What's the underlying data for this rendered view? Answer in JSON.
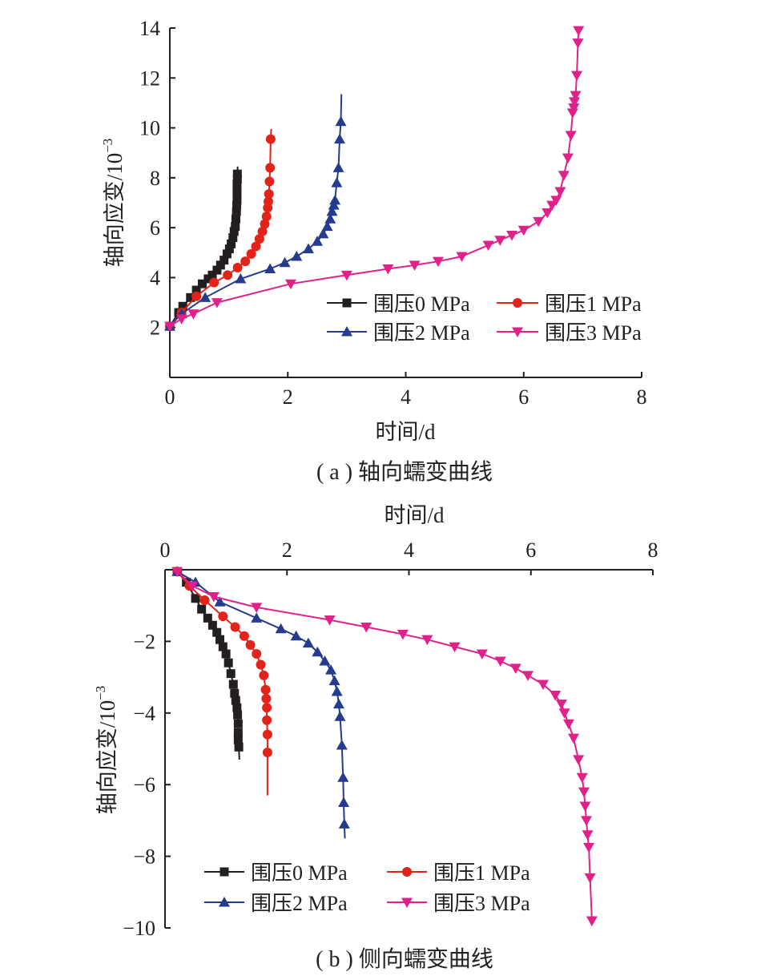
{
  "chart_data": [
    {
      "type": "line",
      "caption": "( a ) 轴向蠕变曲线",
      "xlabel": "时间/d",
      "ylabel": "轴向应变/10",
      "ylabel_exponent": "−3",
      "xlim": [
        0,
        8
      ],
      "ylim": [
        0,
        14
      ],
      "xticks": [
        "0",
        "2",
        "4",
        "6",
        "8"
      ],
      "yticks": [
        "2",
        "4",
        "6",
        "8",
        "10",
        "12",
        "14"
      ],
      "legend_position": "lower-right",
      "series": [
        {
          "name": "围压0 MPa",
          "color": "#231f20",
          "marker": "square",
          "x": [
            0.0,
            0.15,
            0.22,
            0.35,
            0.45,
            0.55,
            0.65,
            0.72,
            0.8,
            0.86,
            0.92,
            0.97,
            1.01,
            1.04,
            1.07,
            1.09,
            1.11,
            1.12,
            1.13,
            1.135,
            1.14,
            1.14,
            1.14,
            1.14,
            1.145,
            1.145,
            1.15
          ],
          "y": [
            2.05,
            2.6,
            2.85,
            3.2,
            3.5,
            3.75,
            3.95,
            4.1,
            4.3,
            4.5,
            4.7,
            4.95,
            5.15,
            5.35,
            5.6,
            5.85,
            6.05,
            6.35,
            6.65,
            6.9,
            7.1,
            7.35,
            7.55,
            7.75,
            7.95,
            8.15,
            8.45
          ]
        },
        {
          "name": "围压1 MPa",
          "color": "#e2231a",
          "marker": "circle",
          "x": [
            0.0,
            0.2,
            0.45,
            0.75,
            0.98,
            1.15,
            1.28,
            1.38,
            1.46,
            1.52,
            1.57,
            1.61,
            1.64,
            1.66,
            1.67,
            1.68,
            1.69,
            1.7,
            1.71,
            1.72
          ],
          "y": [
            2.05,
            2.6,
            3.25,
            3.8,
            4.1,
            4.4,
            4.65,
            4.95,
            5.25,
            5.55,
            5.85,
            6.15,
            6.45,
            6.8,
            7.05,
            7.35,
            7.85,
            8.4,
            9.55,
            9.95
          ]
        },
        {
          "name": "围压2 MPa",
          "color": "#243b8f",
          "marker": "triangle-up",
          "x": [
            0.0,
            0.2,
            0.6,
            1.2,
            1.7,
            1.95,
            2.15,
            2.35,
            2.5,
            2.6,
            2.67,
            2.72,
            2.75,
            2.78,
            2.8,
            2.83,
            2.86,
            2.88,
            2.9,
            2.91
          ],
          "y": [
            2.05,
            2.55,
            3.2,
            3.95,
            4.35,
            4.6,
            4.85,
            5.15,
            5.45,
            5.75,
            6.05,
            6.35,
            6.65,
            6.9,
            7.1,
            7.8,
            8.4,
            9.55,
            10.25,
            11.35
          ]
        },
        {
          "name": "围压3 MPa",
          "color": "#e0218a",
          "marker": "triangle-down",
          "x": [
            0.0,
            0.2,
            0.4,
            0.8,
            2.05,
            3.0,
            3.7,
            4.15,
            4.55,
            4.95,
            5.4,
            5.6,
            5.8,
            6.0,
            6.25,
            6.4,
            6.48,
            6.55,
            6.62,
            6.68,
            6.75,
            6.8,
            6.83,
            6.85,
            6.86,
            6.88,
            6.9,
            6.92,
            6.93
          ],
          "y": [
            2.05,
            2.35,
            2.55,
            3.0,
            3.75,
            4.1,
            4.35,
            4.5,
            4.65,
            4.85,
            5.3,
            5.5,
            5.7,
            5.9,
            6.25,
            6.6,
            6.9,
            7.1,
            7.45,
            8.1,
            8.8,
            9.7,
            10.6,
            10.8,
            11.05,
            11.3,
            12.1,
            13.4,
            13.9
          ]
        }
      ]
    },
    {
      "type": "line",
      "caption": "( b ) 侧向蠕变曲线",
      "xlabel": "时间/d",
      "ylabel": "轴向应变/10",
      "ylabel_exponent": "−3",
      "xlim": [
        0,
        8
      ],
      "ylim": [
        -10,
        0
      ],
      "xticks": [
        "0",
        "2",
        "4",
        "6",
        "8"
      ],
      "yticks": [
        "−2",
        "−4",
        "−6",
        "−8",
        "−10"
      ],
      "legend_position": "bottom-left",
      "series": [
        {
          "name": "围压0 MPa",
          "color": "#231f20",
          "marker": "square",
          "x": [
            0.2,
            0.35,
            0.5,
            0.6,
            0.7,
            0.78,
            0.85,
            0.9,
            0.95,
            1.0,
            1.04,
            1.08,
            1.12,
            1.14,
            1.16,
            1.18,
            1.19,
            1.2,
            1.2,
            1.2,
            1.21,
            1.22
          ],
          "y": [
            -0.05,
            -0.35,
            -0.8,
            -1.1,
            -1.35,
            -1.55,
            -1.75,
            -1.95,
            -2.15,
            -2.35,
            -2.6,
            -2.9,
            -3.2,
            -3.45,
            -3.65,
            -3.85,
            -4.05,
            -4.3,
            -4.55,
            -4.75,
            -4.95,
            -5.3
          ]
        },
        {
          "name": "围压1 MPa",
          "color": "#e2231a",
          "marker": "circle",
          "x": [
            0.2,
            0.4,
            0.65,
            0.95,
            1.15,
            1.3,
            1.4,
            1.5,
            1.57,
            1.62,
            1.65,
            1.66,
            1.67,
            1.67,
            1.68,
            1.68,
            1.68
          ],
          "y": [
            -0.05,
            -0.45,
            -0.85,
            -1.3,
            -1.6,
            -1.85,
            -2.1,
            -2.35,
            -2.65,
            -2.95,
            -3.35,
            -3.6,
            -3.85,
            -4.2,
            -4.6,
            -5.1,
            -6.3
          ]
        },
        {
          "name": "围压2 MPa",
          "color": "#243b8f",
          "marker": "triangle-up",
          "x": [
            0.2,
            0.5,
            0.9,
            1.5,
            1.9,
            2.15,
            2.35,
            2.5,
            2.62,
            2.72,
            2.78,
            2.82,
            2.85,
            2.87,
            2.9,
            2.92,
            2.93,
            2.94,
            2.95
          ],
          "y": [
            -0.05,
            -0.35,
            -0.9,
            -1.35,
            -1.65,
            -1.85,
            -2.05,
            -2.3,
            -2.55,
            -2.8,
            -3.1,
            -3.4,
            -3.75,
            -4.1,
            -4.9,
            -5.8,
            -6.5,
            -7.1,
            -7.5
          ]
        },
        {
          "name": "围压3 MPa",
          "color": "#e0218a",
          "marker": "triangle-down",
          "x": [
            0.2,
            0.45,
            0.8,
            1.5,
            2.7,
            3.3,
            3.9,
            4.3,
            4.75,
            5.2,
            5.5,
            5.75,
            5.95,
            6.2,
            6.4,
            6.5,
            6.55,
            6.62,
            6.7,
            6.78,
            6.84,
            6.87,
            6.89,
            6.91,
            6.93,
            6.95,
            6.97,
            7.0
          ],
          "y": [
            -0.05,
            -0.45,
            -0.75,
            -1.05,
            -1.4,
            -1.6,
            -1.8,
            -1.95,
            -2.15,
            -2.35,
            -2.55,
            -2.75,
            -2.95,
            -3.2,
            -3.5,
            -3.75,
            -4.0,
            -4.3,
            -4.7,
            -5.3,
            -5.8,
            -6.2,
            -6.6,
            -7.0,
            -7.4,
            -7.75,
            -8.6,
            -9.8
          ]
        }
      ]
    }
  ]
}
